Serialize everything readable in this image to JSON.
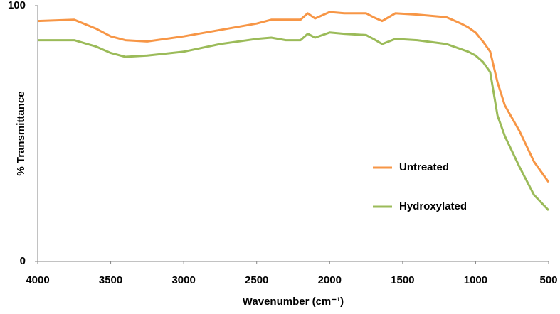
{
  "chart_data": {
    "type": "line",
    "x_label": "Wavenumber (cm⁻¹)",
    "y_label": "% Transmittance",
    "x": [
      4000,
      3750,
      3600,
      3500,
      3400,
      3250,
      3000,
      2750,
      2500,
      2400,
      2300,
      2200,
      2150,
      2100,
      2000,
      1900,
      1750,
      1700,
      1640,
      1550,
      1400,
      1200,
      1100,
      1050,
      1000,
      950,
      900,
      850,
      800,
      700,
      600,
      500
    ],
    "series": [
      {
        "name": "Untreated",
        "color": "#f79646",
        "values": [
          94,
          94.5,
          91,
          88,
          86.5,
          86,
          88,
          90.5,
          93,
          94.5,
          94.5,
          94.5,
          97,
          95,
          97.5,
          97,
          97,
          95.5,
          94,
          97,
          96.5,
          95.5,
          93,
          91.5,
          89.5,
          86,
          82,
          70,
          61,
          51,
          39,
          31
        ]
      },
      {
        "name": "Hydroxylated",
        "color": "#9bbb59",
        "values": [
          86.5,
          86.5,
          84,
          81.5,
          80,
          80.5,
          82,
          85,
          87,
          87.5,
          86.5,
          86.5,
          89,
          87.5,
          89.5,
          89,
          88.5,
          87,
          85,
          87,
          86.5,
          85,
          83,
          82,
          80.5,
          78,
          74,
          57,
          49,
          37,
          26,
          20
        ]
      }
    ],
    "xlim": [
      4000,
      500
    ],
    "ylim": [
      0,
      100
    ],
    "xticks": [
      4000,
      3500,
      3000,
      2500,
      2000,
      1500,
      1000,
      500
    ],
    "yticks": [
      0,
      100
    ],
    "grid": false,
    "legend_position": "right"
  }
}
